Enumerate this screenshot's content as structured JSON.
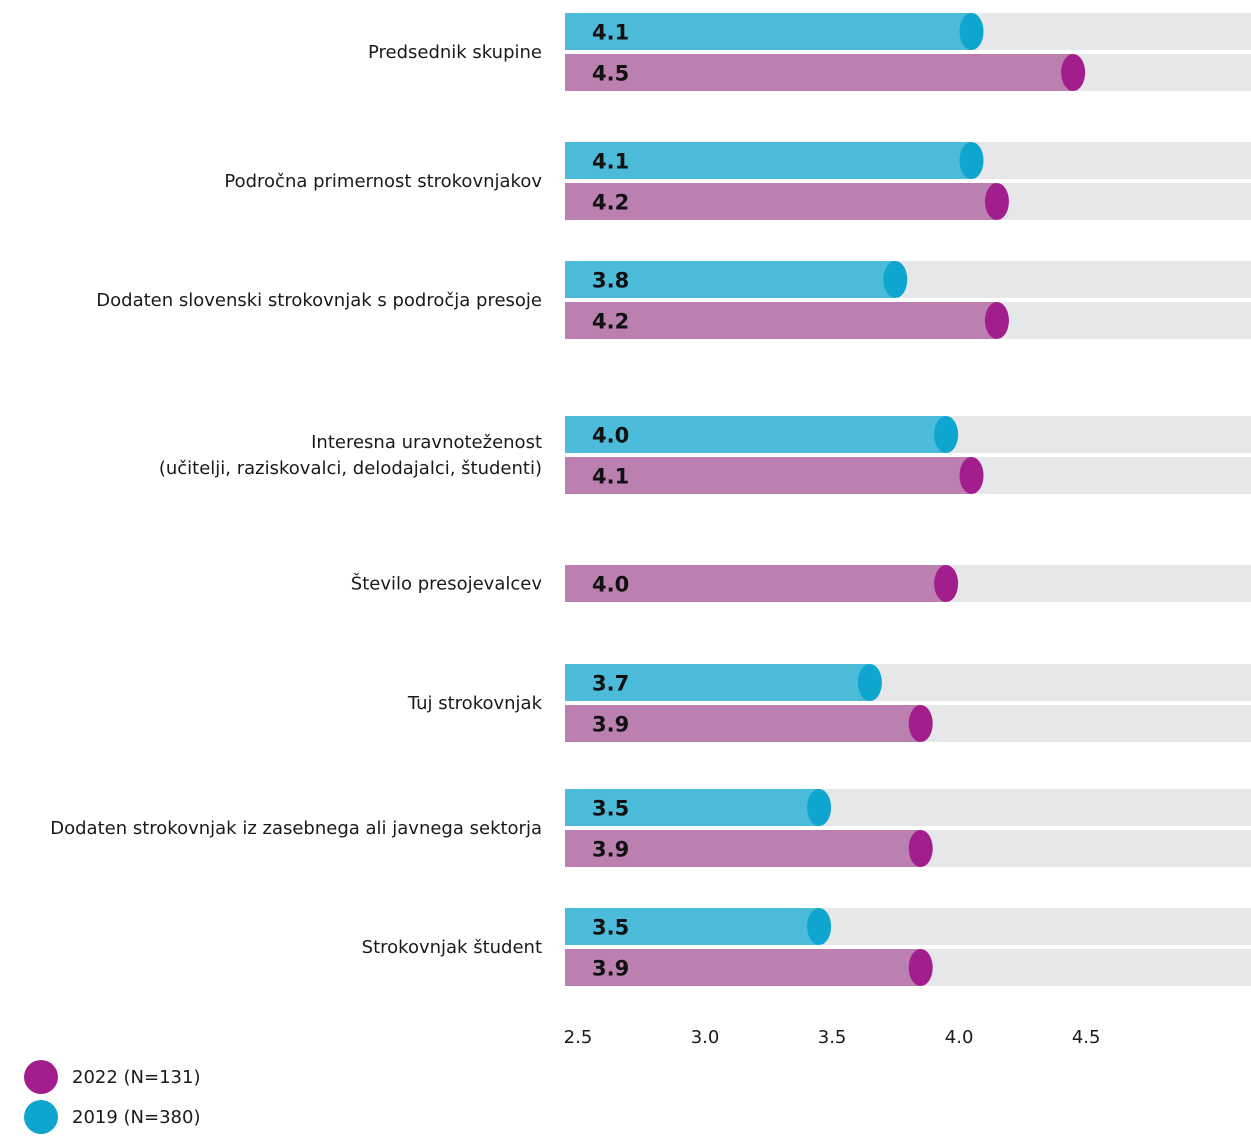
{
  "chart_data": {
    "type": "bar",
    "orientation": "horizontal",
    "categories": [
      "Predsednik skupine",
      "Področna primernost strokovnjakov",
      "Dodaten slovenski strokovnjak s področja presoje",
      "Interesna uravnoteženost\n(učitelji, raziskovalci, delodajalci, študenti)",
      "Število presojevalcev",
      "Tuj strokovnjak",
      "Dodaten strokovnjak iz zasebnega ali javnega sektorja",
      "Strokovnjak študent"
    ],
    "series": [
      {
        "name": "2019 (N=380)",
        "color": "#4cbbd9",
        "dot_color": "#0ea5cf",
        "values": [
          4.1,
          4.1,
          3.8,
          4.0,
          null,
          3.7,
          3.5,
          3.5
        ],
        "labels": [
          "4.1",
          "4.1",
          "3.8",
          "4.0",
          null,
          "3.7",
          "3.5",
          "3.5"
        ]
      },
      {
        "name": "2022 (N=131)",
        "color": "#bb7fb0",
        "dot_color": "#a21e8d",
        "values": [
          4.5,
          4.2,
          4.2,
          4.1,
          4.0,
          3.9,
          3.9,
          3.9
        ],
        "labels": [
          "4.5",
          "4.2",
          "4.2",
          "4.1",
          "4.0",
          "3.9",
          "3.9",
          "3.9"
        ]
      }
    ],
    "xlim": [
      2.5,
      5.2
    ],
    "xticks": [
      "2.5",
      "3.0",
      "3.5",
      "4.0",
      "4.5"
    ],
    "track_color": "#e6e7e9",
    "legend_position": "bottom-left"
  },
  "legend": {
    "items": [
      {
        "label": "2022 (N=131)",
        "color": "#a21e8d"
      },
      {
        "label": "2019 (N=380)",
        "color": "#0ea5cf"
      }
    ]
  }
}
